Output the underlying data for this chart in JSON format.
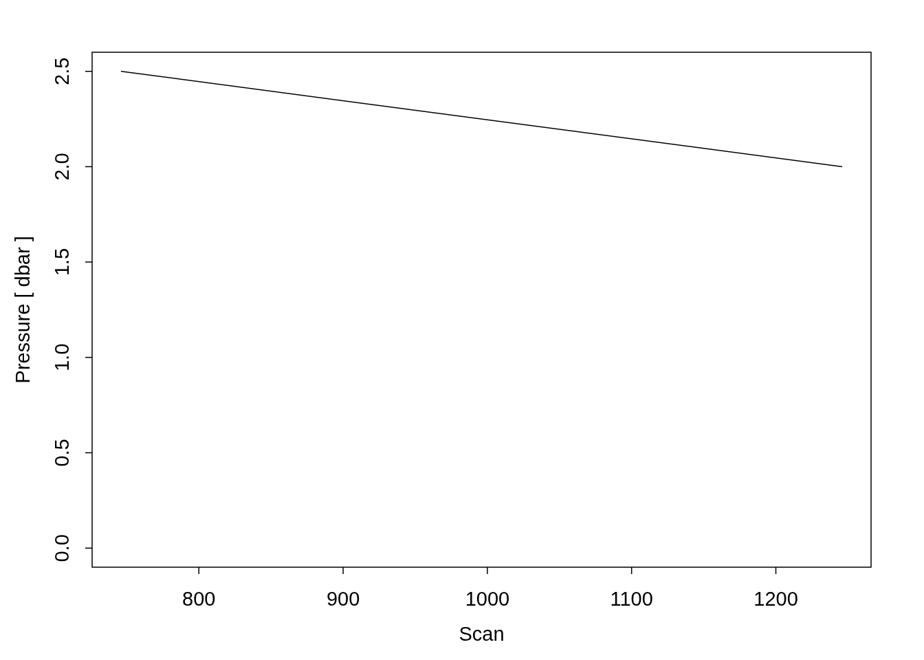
{
  "chart_data": {
    "type": "line",
    "xlabel": "Scan",
    "ylabel": "Pressure [ dbar ]",
    "x": [
      746,
      1246
    ],
    "series": [
      {
        "color": "#000000",
        "values": [
          2.5,
          2.0
        ]
      }
    ],
    "xlim": [
      726,
      1266
    ],
    "ylim": [
      -0.1,
      2.6
    ],
    "xticks": [
      800,
      900,
      1000,
      1100,
      1200
    ],
    "yticks": [
      {
        "value": 0,
        "label": "0.0"
      },
      {
        "value": 0.5,
        "label": "0.5"
      },
      {
        "value": 1,
        "label": "1.0"
      },
      {
        "value": 1.5,
        "label": "1.5"
      },
      {
        "value": 2,
        "label": "2.0"
      },
      {
        "value": 2.5,
        "label": "2.5"
      }
    ],
    "grid": false,
    "line_style": "solid",
    "marker": "none"
  }
}
